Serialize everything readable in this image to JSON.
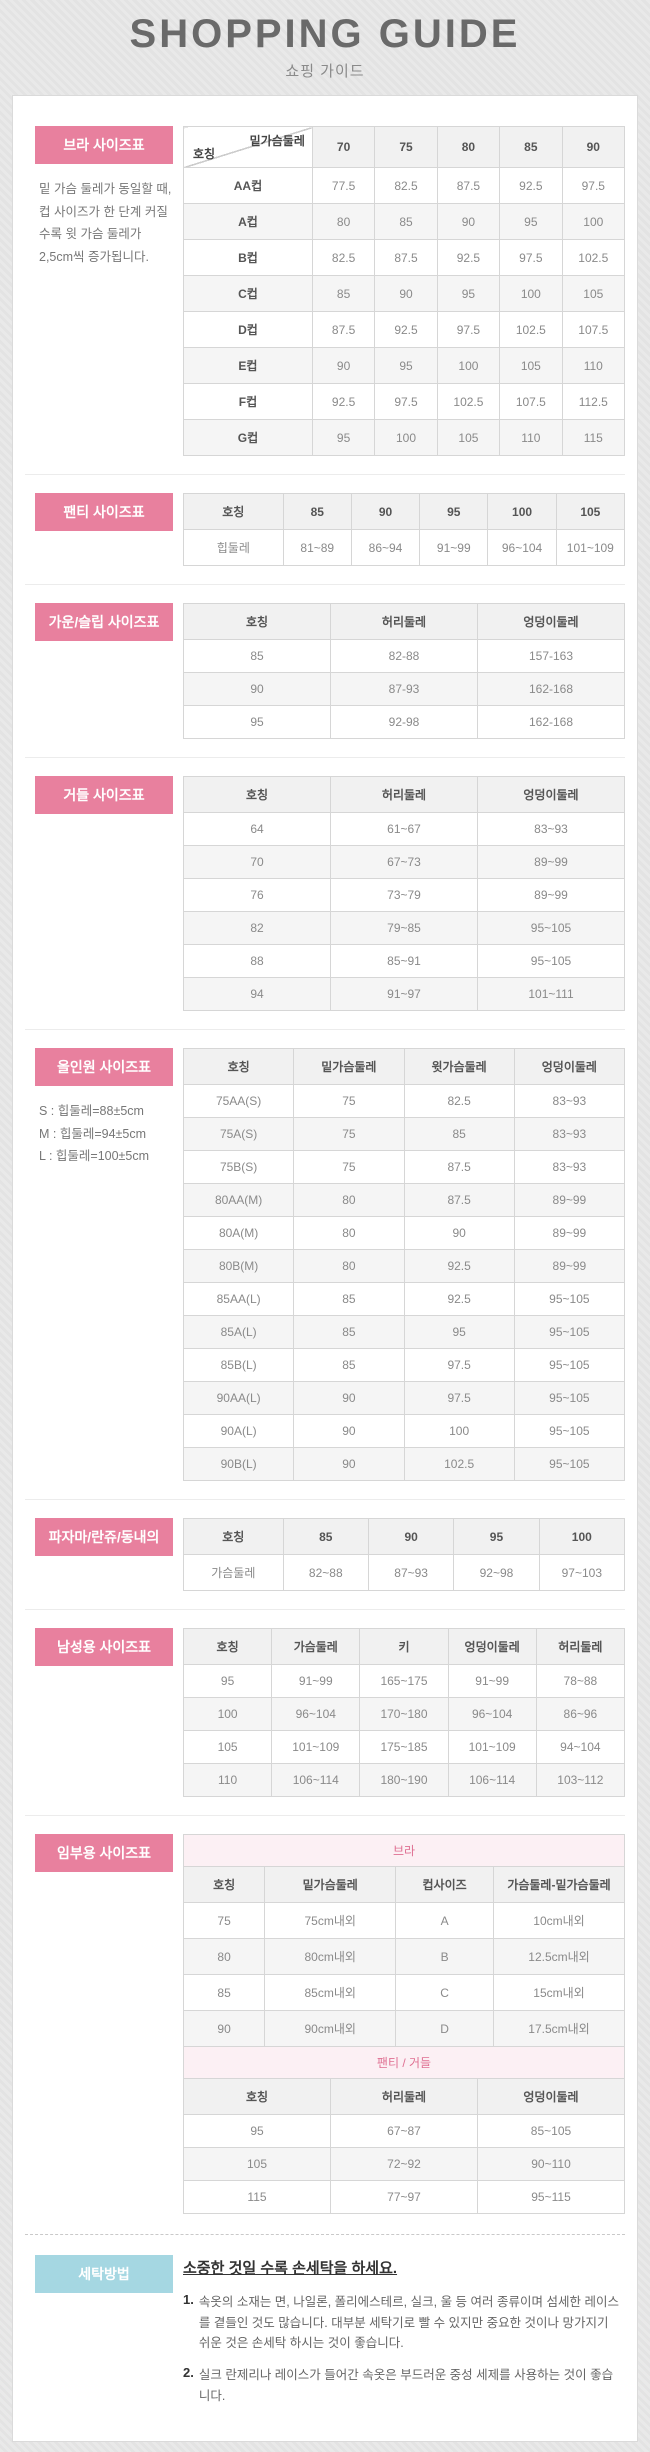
{
  "header": {
    "title": "SHOPPING GUIDE",
    "subtitle": "쇼핑 가이드"
  },
  "colors": {
    "accent_pink": "#e8809e",
    "accent_pink_light": "#fcf0f4",
    "accent_pink_text": "#df7092",
    "accent_blue": "#a5d7e2"
  },
  "sections": {
    "bra": {
      "label": "브라 사이즈표",
      "note": "밑 가슴 둘레가 동일할 때, 컵 사이즈가 한 단계 커질수록 윗 가슴 둘레가 2,5cm씩 증가됩니다.",
      "table": {
        "corner": {
          "top": "밑가슴둘레",
          "bottom": "호칭"
        },
        "columns": [
          "70",
          "75",
          "80",
          "85",
          "90"
        ],
        "rows": [
          [
            "AA컵",
            "77.5",
            "82.5",
            "87.5",
            "92.5",
            "97.5"
          ],
          [
            "A컵",
            "80",
            "85",
            "90",
            "95",
            "100"
          ],
          [
            "B컵",
            "82.5",
            "87.5",
            "92.5",
            "97.5",
            "102.5"
          ],
          [
            "C컵",
            "85",
            "90",
            "95",
            "100",
            "105"
          ],
          [
            "D컵",
            "87.5",
            "92.5",
            "97.5",
            "102.5",
            "107.5"
          ],
          [
            "E컵",
            "90",
            "95",
            "100",
            "105",
            "110"
          ],
          [
            "F컵",
            "92.5",
            "97.5",
            "102.5",
            "107.5",
            "112.5"
          ],
          [
            "G컵",
            "95",
            "100",
            "105",
            "110",
            "115"
          ]
        ]
      }
    },
    "panty": {
      "label": "팬티 사이즈표",
      "table": {
        "columns": [
          "호칭",
          "85",
          "90",
          "95",
          "100",
          "105"
        ],
        "rows": [
          [
            "힙둘레",
            "81~89",
            "86~94",
            "91~99",
            "96~104",
            "101~109"
          ]
        ]
      }
    },
    "gown": {
      "label": "가운/슬립 사이즈표",
      "table": {
        "columns": [
          "호칭",
          "허리둘레",
          "엉덩이둘레"
        ],
        "rows": [
          [
            "85",
            "82-88",
            "157-163"
          ],
          [
            "90",
            "87-93",
            "162-168"
          ],
          [
            "95",
            "92-98",
            "162-168"
          ]
        ]
      }
    },
    "girdle": {
      "label": "거들 사이즈표",
      "table": {
        "columns": [
          "호칭",
          "허리둘레",
          "엉덩이둘레"
        ],
        "rows": [
          [
            "64",
            "61~67",
            "83~93"
          ],
          [
            "70",
            "67~73",
            "89~99"
          ],
          [
            "76",
            "73~79",
            "89~99"
          ],
          [
            "82",
            "79~85",
            "95~105"
          ],
          [
            "88",
            "85~91",
            "95~105"
          ],
          [
            "94",
            "91~97",
            "101~111"
          ]
        ]
      }
    },
    "allinone": {
      "label": "올인원 사이즈표",
      "notes": [
        "S : 힙둘레=88±5cm",
        "M : 힙둘레=94±5cm",
        "L : 힙둘레=100±5cm"
      ],
      "table": {
        "columns": [
          "호칭",
          "밑가슴둘레",
          "윗가슴둘레",
          "엉덩이둘레"
        ],
        "rows": [
          [
            "75AA(S)",
            "75",
            "82.5",
            "83~93"
          ],
          [
            "75A(S)",
            "75",
            "85",
            "83~93"
          ],
          [
            "75B(S)",
            "75",
            "87.5",
            "83~93"
          ],
          [
            "80AA(M)",
            "80",
            "87.5",
            "89~99"
          ],
          [
            "80A(M)",
            "80",
            "90",
            "89~99"
          ],
          [
            "80B(M)",
            "80",
            "92.5",
            "89~99"
          ],
          [
            "85AA(L)",
            "85",
            "92.5",
            "95~105"
          ],
          [
            "85A(L)",
            "85",
            "95",
            "95~105"
          ],
          [
            "85B(L)",
            "85",
            "97.5",
            "95~105"
          ],
          [
            "90AA(L)",
            "90",
            "97.5",
            "95~105"
          ],
          [
            "90A(L)",
            "90",
            "100",
            "95~105"
          ],
          [
            "90B(L)",
            "90",
            "102.5",
            "95~105"
          ]
        ]
      }
    },
    "pajama": {
      "label": "파자마/란쥬/동내의",
      "table": {
        "columns": [
          "호칭",
          "85",
          "90",
          "95",
          "100"
        ],
        "rows": [
          [
            "가슴둘레",
            "82~88",
            "87~93",
            "92~98",
            "97~103"
          ]
        ]
      }
    },
    "mens": {
      "label": "남성용 사이즈표",
      "table": {
        "columns": [
          "호칭",
          "가슴둘레",
          "키",
          "엉덩이둘레",
          "허리둘레"
        ],
        "rows": [
          [
            "95",
            "91~99",
            "165~175",
            "91~99",
            "78~88"
          ],
          [
            "100",
            "96~104",
            "170~180",
            "96~104",
            "86~96"
          ],
          [
            "105",
            "101~109",
            "175~185",
            "101~109",
            "94~104"
          ],
          [
            "110",
            "106~114",
            "180~190",
            "106~114",
            "103~112"
          ]
        ]
      }
    },
    "maternity": {
      "label": "임부용 사이즈표",
      "bra_caption": "브라",
      "bra_table": {
        "columns": [
          "호칭",
          "밑가슴둘레",
          "컵사이즈",
          "가슴둘레-밑가슴둘레"
        ],
        "rows": [
          [
            "75",
            "75cm내외",
            "A",
            "10cm내외"
          ],
          [
            "80",
            "80cm내외",
            "B",
            "12.5cm내외"
          ],
          [
            "85",
            "85cm내외",
            "C",
            "15cm내외"
          ],
          [
            "90",
            "90cm내외",
            "D",
            "17.5cm내외"
          ]
        ]
      },
      "girdle_caption": "팬티 / 거들",
      "girdle_table": {
        "columns": [
          "호칭",
          "허리둘레",
          "엉덩이둘레"
        ],
        "rows": [
          [
            "95",
            "67~87",
            "85~105"
          ],
          [
            "105",
            "72~92",
            "90~110"
          ],
          [
            "115",
            "77~97",
            "95~115"
          ]
        ]
      }
    },
    "washing": {
      "label": "세탁방법",
      "title": "소중한 것일 수록 손세탁을 하세요.",
      "items": [
        {
          "num": "1.",
          "text": "속옷의 소재는 면, 나일론, 폴리에스테르, 실크, 울 등 여러 종류이며 섬세한 레이스를 곁들인 것도 많습니다. 대부분 세탁기로 빨 수 있지만 중요한 것이나 망가지기 쉬운 것은 손세탁 하시는 것이 좋습니다."
        },
        {
          "num": "2.",
          "text": "실크 란제리나 레이스가 들어간 속옷은 부드러운 중성 세제를 사용하는 것이 좋습니다."
        }
      ]
    }
  }
}
